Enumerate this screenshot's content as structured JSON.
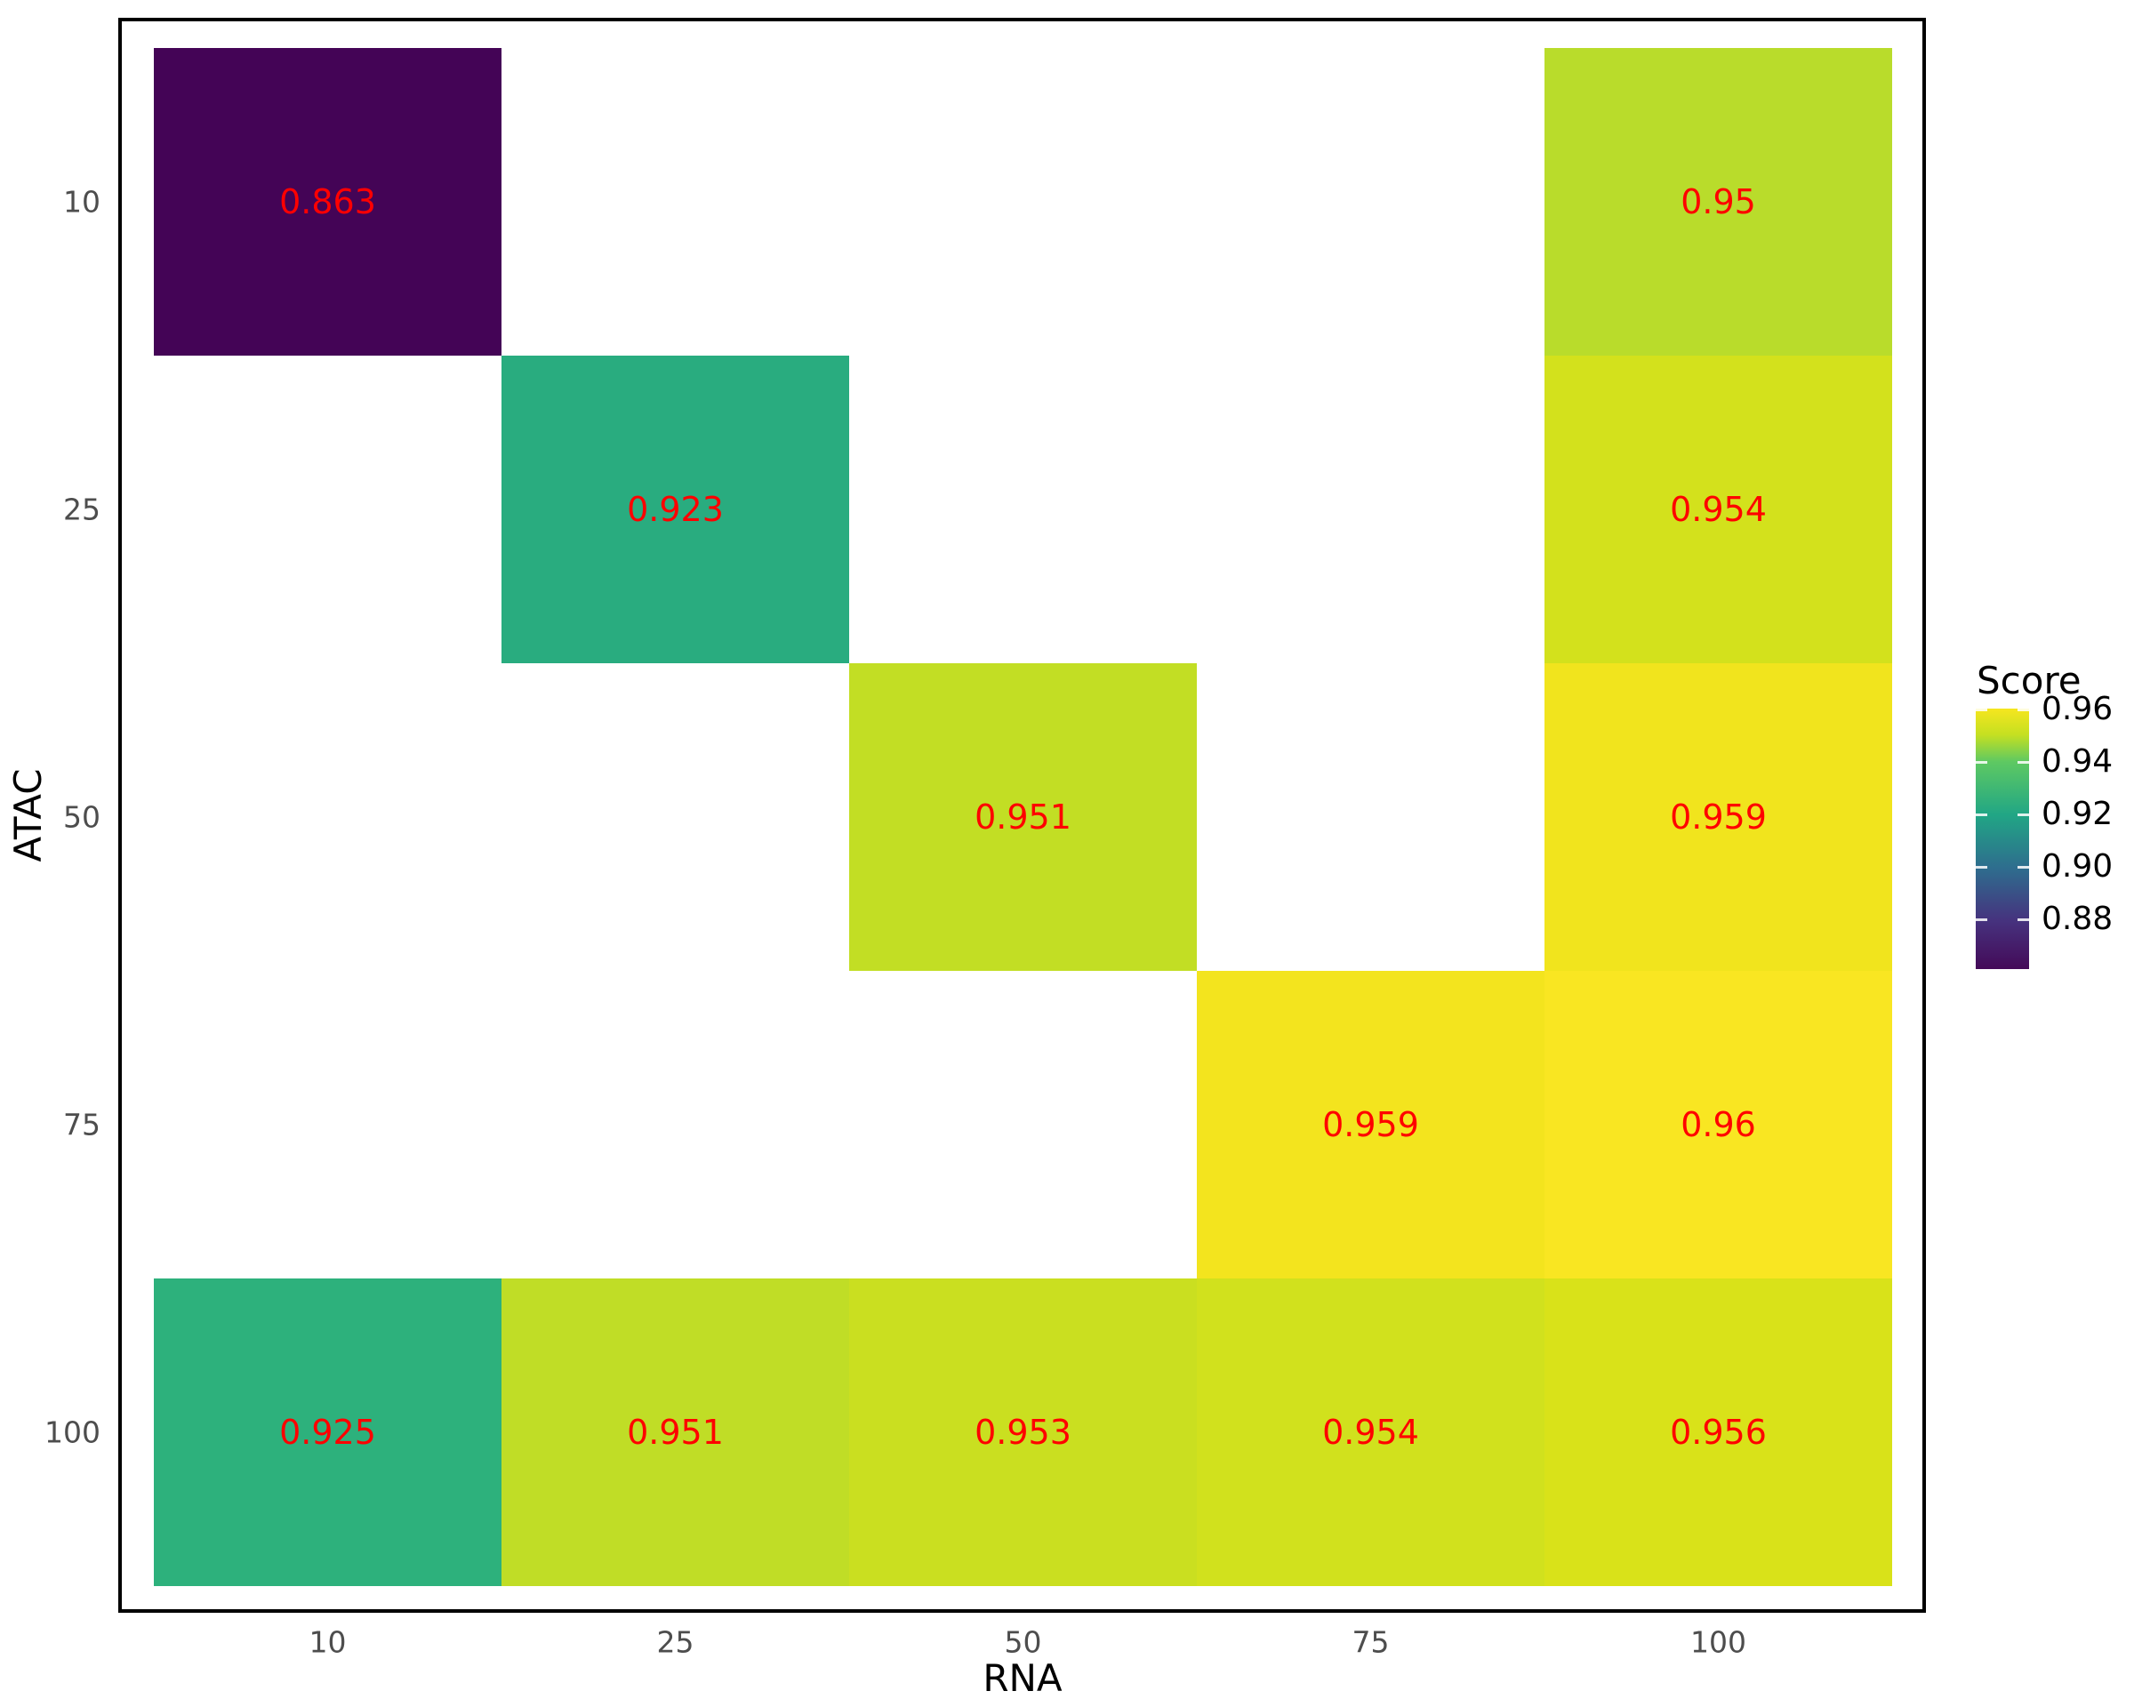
{
  "figure": {
    "background": "#ffffff",
    "panel_border_color": "#000000"
  },
  "chart_data": {
    "type": "heatmap",
    "title": "",
    "xlabel": "RNA",
    "ylabel": "ATAC",
    "x_categories": [
      "10",
      "25",
      "50",
      "75",
      "100"
    ],
    "y_categories": [
      "10",
      "25",
      "50",
      "75",
      "100"
    ],
    "value_label_color": "#ff0000",
    "axis_tick_color": "#4d4d4d",
    "axis_title_color": "#000000",
    "grid": "off",
    "cells": [
      {
        "rna": "10",
        "atac": "10",
        "score": "0.863",
        "color": "#440456"
      },
      {
        "rna": "100",
        "atac": "10",
        "score": "0.95",
        "color": "#b9dc2b"
      },
      {
        "rna": "25",
        "atac": "25",
        "score": "0.923",
        "color": "#29ac7f"
      },
      {
        "rna": "100",
        "atac": "25",
        "score": "0.954",
        "color": "#d3e11c"
      },
      {
        "rna": "50",
        "atac": "50",
        "score": "0.951",
        "color": "#c2de24"
      },
      {
        "rna": "100",
        "atac": "50",
        "score": "0.959",
        "color": "#f1e41d"
      },
      {
        "rna": "75",
        "atac": "75",
        "score": "0.959",
        "color": "#f3e41e"
      },
      {
        "rna": "100",
        "atac": "75",
        "score": "0.96",
        "color": "#f9e622"
      },
      {
        "rna": "10",
        "atac": "100",
        "score": "0.925",
        "color": "#2db17c"
      },
      {
        "rna": "25",
        "atac": "100",
        "score": "0.951",
        "color": "#c0dd26"
      },
      {
        "rna": "50",
        "atac": "100",
        "score": "0.953",
        "color": "#cadf20"
      },
      {
        "rna": "75",
        "atac": "100",
        "score": "0.954",
        "color": "#d1e11d"
      },
      {
        "rna": "100",
        "atac": "100",
        "score": "0.956",
        "color": "#d9e219"
      }
    ],
    "legend": {
      "title": "Score",
      "position": "right",
      "tick_labels": [
        "0.96",
        "0.94",
        "0.92",
        "0.90",
        "0.88"
      ],
      "colormap": "viridis",
      "domain": [
        0.862,
        0.96
      ],
      "gradient_stops": [
        {
          "pos": 0.0,
          "color": "#f6e61f"
        },
        {
          "pos": 0.1,
          "color": "#c5e021"
        },
        {
          "pos": 0.204,
          "color": "#5ec962"
        },
        {
          "pos": 0.408,
          "color": "#21a685"
        },
        {
          "pos": 0.612,
          "color": "#2e6d8e"
        },
        {
          "pos": 0.816,
          "color": "#46327e"
        },
        {
          "pos": 1.0,
          "color": "#440a58"
        }
      ]
    }
  }
}
